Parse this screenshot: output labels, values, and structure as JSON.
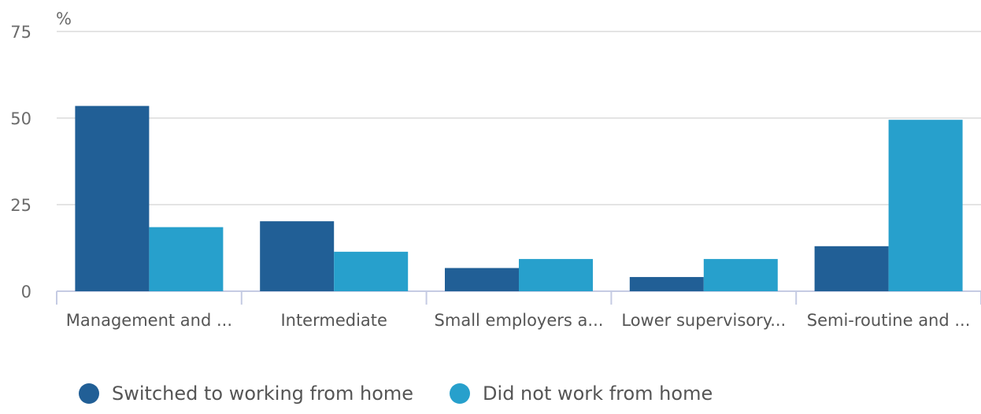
{
  "chart_data": {
    "type": "bar",
    "ylabel": "%",
    "ylim": [
      0,
      75
    ],
    "yticks": [
      "0",
      "25",
      "50",
      "75"
    ],
    "grid": true,
    "legend_position": "bottom",
    "categories": [
      "Management and ...",
      "Intermediate",
      "Small employers a...",
      "Lower supervisory...",
      "Semi-routine and ..."
    ],
    "series": [
      {
        "name": "Switched to working from home",
        "color": "#215F96",
        "values": [
          53.5,
          20.2,
          6.7,
          4.1,
          13.0
        ]
      },
      {
        "name": "Did not work from home",
        "color": "#27A0CC",
        "values": [
          18.5,
          11.4,
          9.3,
          9.3,
          49.5
        ]
      }
    ]
  }
}
